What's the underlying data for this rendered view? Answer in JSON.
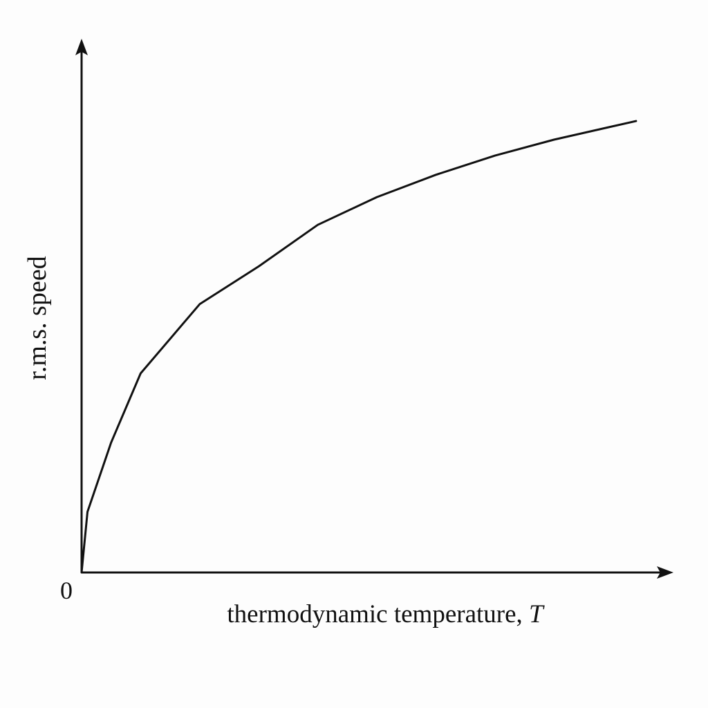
{
  "chart_data": {
    "type": "line",
    "x_label": "thermodynamic temperature,",
    "x_label_symbol": "T",
    "y_label": "r.m.s. speed",
    "x": [
      0,
      0.1,
      0.5,
      1,
      2,
      3,
      4,
      5,
      6,
      7,
      8,
      9.39
    ],
    "series": [
      {
        "color": "#111111",
        "values": [
          0,
          1.14,
          2.44,
          3.74,
          5.04,
          5.75,
          6.53,
          7.05,
          7.47,
          7.83,
          8.13,
          8.48
        ]
      }
    ],
    "xlim": [
      0,
      10
    ],
    "ylim": [
      0,
      10
    ],
    "xticks": [
      0
    ],
    "grid": false
  }
}
